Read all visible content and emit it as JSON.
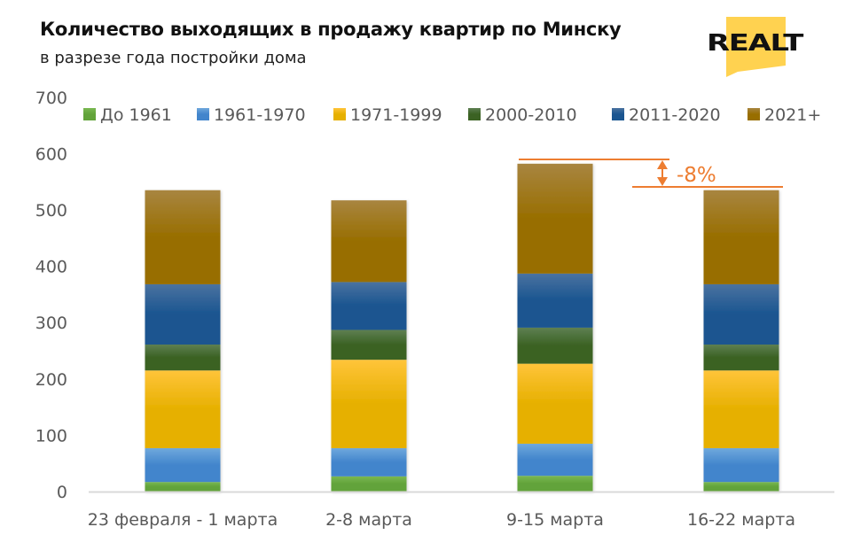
{
  "header": {
    "title": "Количество выходящих в продажу квартир по Минску",
    "subtitle": "в разрезе года постройки дома",
    "logo_text": "REALT"
  },
  "colors": {
    "accent": "#ED7D31",
    "logo_yellow": "#FFD250"
  },
  "chart_data": {
    "type": "bar",
    "stacked": true,
    "title": "Количество выходящих в продажу квартир по Минску",
    "subtitle": "в разрезе года постройки дома",
    "xlabel": "",
    "ylabel": "",
    "ylim": [
      0,
      700
    ],
    "yticks": [
      0,
      100,
      200,
      300,
      400,
      500,
      600,
      700
    ],
    "ytick_labels": [
      "0",
      "100",
      "200",
      "300",
      "400",
      "500",
      "600",
      "700"
    ],
    "grid": false,
    "legend_position": "top",
    "categories": [
      "23 февраля - 1 марта",
      "2-8 марта",
      "9-15 марта",
      "16-22 марта"
    ],
    "series": [
      {
        "name": "До 1961",
        "color_top": "#7AB852",
        "color_bottom": "#62A33A",
        "values": [
          17,
          27,
          28,
          17
        ]
      },
      {
        "name": "1961-1970",
        "color_top": "#6FA8DC",
        "color_bottom": "#4285CC",
        "values": [
          60,
          50,
          57,
          60
        ]
      },
      {
        "name": "1971-1999",
        "color_top": "#FFC43A",
        "color_bottom": "#E6B000",
        "values": [
          138,
          157,
          142,
          138
        ]
      },
      {
        "name": "2000-2010",
        "color_top": "#5E7F52",
        "color_bottom": "#3B6223",
        "values": [
          46,
          53,
          64,
          46
        ]
      },
      {
        "name": "2011-2020",
        "color_top": "#4A72A0",
        "color_bottom": "#1A5590",
        "values": [
          107,
          85,
          96,
          107
        ]
      },
      {
        "name": "2021+",
        "color_top": "#A88540",
        "color_bottom": "#986E00",
        "values": [
          167,
          145,
          195,
          167
        ]
      }
    ],
    "annotations": [
      {
        "text": "-8%",
        "from_category": "9-15 марта",
        "to_category": "16-22 марта"
      }
    ]
  }
}
